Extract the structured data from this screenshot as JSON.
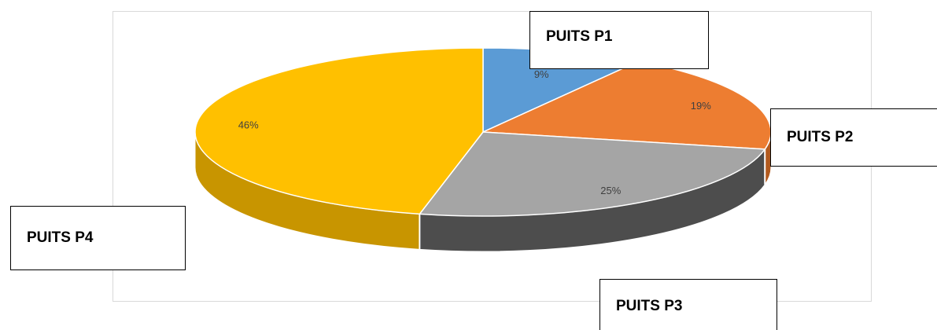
{
  "chart_data": {
    "type": "pie",
    "style": "3d",
    "title": "",
    "categories": [
      "PUITS P1",
      "PUITS P2",
      "PUITS P3",
      "PUITS P4"
    ],
    "values": [
      9,
      19,
      25,
      46
    ],
    "value_labels": [
      "9%",
      "19%",
      "25%",
      "46%"
    ],
    "colors": [
      "#5b9bd5",
      "#ed7d31",
      "#a5a5a5",
      "#ffc000"
    ],
    "side_colors": [
      "#3f75a8",
      "#b35a1e",
      "#4d4d4d",
      "#c89500"
    ],
    "legend": "none",
    "callouts": [
      "PUITS P1",
      "PUITS P2",
      "PUITS P3",
      "PUITS P4"
    ]
  }
}
